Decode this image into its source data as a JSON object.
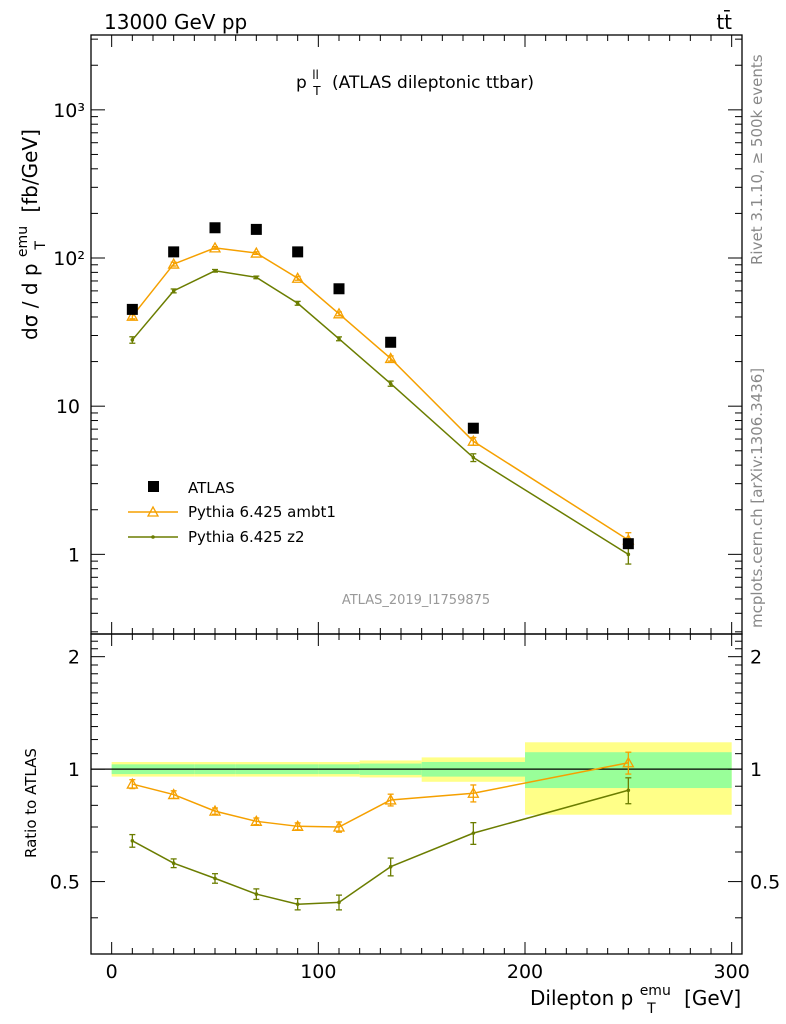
{
  "header": {
    "left": "13000 GeV pp",
    "right": "tt̄"
  },
  "plot_title": {
    "main": "p",
    "sup": "ll",
    "sub": "T",
    "rest": "(ATLAS dileptonic ttbar)"
  },
  "side_labels": {
    "rivet": "Rivet 3.1.10, ≥ 500k events",
    "mcplots": "mcplots.cern.ch [arXiv:1306.3436]"
  },
  "watermark": "ATLAS_2019_I1759875",
  "yaxis_main": {
    "d": "dσ / d p",
    "sup": "emu",
    "sub": "T",
    "unit": "[fb/GeV]"
  },
  "yaxis_ratio": "Ratio to ATLAS",
  "xaxis": {
    "prefix": "Dilepton p",
    "sup": "emu",
    "sub": "T",
    "unit": "[GeV]"
  },
  "main_ticks": {
    "y": [
      {
        "v": 1000,
        "label": "10³"
      },
      {
        "v": 100,
        "label": "10²"
      },
      {
        "v": 10,
        "label": "10"
      },
      {
        "v": 1,
        "label": "1"
      }
    ]
  },
  "ratio_ticks": {
    "y": [
      {
        "v": 2,
        "label": "2"
      },
      {
        "v": 1,
        "label": "1"
      },
      {
        "v": 0.5,
        "label": "0.5"
      }
    ]
  },
  "x_ticks": [
    {
      "v": 0,
      "label": "0"
    },
    {
      "v": 100,
      "label": "100"
    },
    {
      "v": 200,
      "label": "200"
    },
    {
      "v": 300,
      "label": "300"
    }
  ],
  "legend": [
    {
      "label": "ATLAS"
    },
    {
      "label": "Pythia 6.425 ambt1"
    },
    {
      "label": "Pythia 6.425 z2"
    }
  ],
  "colors": {
    "atlas": "#000000",
    "ambt1": "#f5a000",
    "z2": "#6b7d00",
    "band_inner": "#99ff99",
    "band_outer": "#ffff88"
  },
  "chart_data": [
    {
      "type": "scatter",
      "panel": "main",
      "xlim": [
        -10,
        305
      ],
      "ylim": [
        0.29,
        3200
      ],
      "yscale": "log",
      "x": [
        10,
        30,
        50,
        70,
        90,
        110,
        135,
        175,
        250
      ],
      "series": [
        {
          "name": "ATLAS",
          "values": [
            45,
            110,
            160,
            156,
            110,
            62,
            27,
            7.1,
            1.18
          ]
        },
        {
          "name": "Pythia 6.425 ambt1",
          "values": [
            40.5,
            91,
            117,
            108,
            73,
            42,
            21,
            5.8,
            1.25
          ],
          "err": [
            0.04,
            0.03,
            0.02,
            0.02,
            0.03,
            0.03,
            0.04,
            0.06,
            0.12
          ]
        },
        {
          "name": "Pythia 6.425 z2",
          "values": [
            28,
            60,
            82,
            74,
            49.5,
            28.5,
            14.2,
            4.5,
            1.0
          ],
          "err": [
            0.05,
            0.03,
            0.02,
            0.02,
            0.03,
            0.03,
            0.04,
            0.06,
            0.14
          ]
        }
      ]
    },
    {
      "type": "line",
      "panel": "ratio",
      "xlim": [
        -10,
        305
      ],
      "ylim": [
        0.32,
        2.3
      ],
      "yscale": "log",
      "x": [
        10,
        30,
        50,
        70,
        90,
        110,
        135,
        175,
        250
      ],
      "bins": [
        [
          0,
          20
        ],
        [
          20,
          40
        ],
        [
          40,
          60
        ],
        [
          60,
          80
        ],
        [
          80,
          100
        ],
        [
          100,
          120
        ],
        [
          120,
          150
        ],
        [
          150,
          200
        ],
        [
          200,
          300
        ]
      ],
      "band_inner": [
        [
          0.97,
          1.03
        ],
        [
          0.97,
          1.03
        ],
        [
          0.97,
          1.03
        ],
        [
          0.97,
          1.03
        ],
        [
          0.97,
          1.03
        ],
        [
          0.97,
          1.03
        ],
        [
          0.965,
          1.035
        ],
        [
          0.955,
          1.045
        ],
        [
          0.89,
          1.11
        ]
      ],
      "band_outer": [
        [
          0.955,
          1.045
        ],
        [
          0.955,
          1.045
        ],
        [
          0.955,
          1.045
        ],
        [
          0.955,
          1.045
        ],
        [
          0.955,
          1.045
        ],
        [
          0.955,
          1.045
        ],
        [
          0.95,
          1.055
        ],
        [
          0.925,
          1.075
        ],
        [
          0.755,
          1.18
        ]
      ],
      "series": [
        {
          "name": "Pythia 6.425 ambt1",
          "values": [
            0.912,
            0.855,
            0.772,
            0.725,
            0.703,
            0.7,
            0.827,
            0.862,
            1.04
          ],
          "err": [
            0.025,
            0.02,
            0.015,
            0.015,
            0.015,
            0.022,
            0.03,
            0.045,
            0.07
          ]
        },
        {
          "name": "Pythia 6.425 z2",
          "values": [
            0.643,
            0.56,
            0.51,
            0.463,
            0.435,
            0.44,
            0.548,
            0.674,
            0.878
          ],
          "err": [
            0.025,
            0.015,
            0.015,
            0.015,
            0.015,
            0.02,
            0.03,
            0.045,
            0.07
          ]
        }
      ]
    }
  ]
}
